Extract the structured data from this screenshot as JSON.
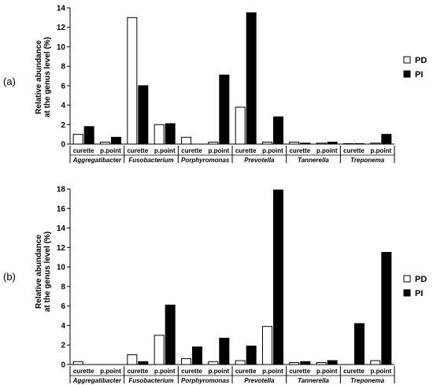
{
  "chart_data": [
    {
      "type": "bar",
      "panel_label": "(a)",
      "ylabel": "Relative abundance at the genus level (%)",
      "ylabel_lines": [
        "Relative abundance",
        "at the genus level (%)"
      ],
      "ylim": [
        0,
        14
      ],
      "yticks": [
        0,
        2,
        4,
        6,
        8,
        10,
        12,
        14
      ],
      "genera": [
        "Aggregatibacter",
        "Fusobacterium",
        "Porphyromonas",
        "Prevotella",
        "Tannerella",
        "Treponema"
      ],
      "categories": [
        "curette",
        "p.point",
        "curette",
        "p.point",
        "curette",
        "p.point",
        "curette",
        "p.point",
        "curette",
        "p.point",
        "curette",
        "p.point"
      ],
      "series": [
        {
          "name": "PD",
          "color": "#ffffff",
          "values": [
            1.0,
            0.2,
            13.0,
            2.0,
            0.7,
            0.2,
            3.8,
            0.2,
            0.2,
            0.1,
            0.05,
            0.1
          ]
        },
        {
          "name": "PI",
          "color": "#000000",
          "values": [
            1.8,
            0.7,
            6.0,
            2.1,
            0.0,
            7.1,
            13.5,
            2.8,
            0.1,
            0.2,
            0.05,
            1.0
          ]
        }
      ],
      "legend_position": "right",
      "grid": false
    },
    {
      "type": "bar",
      "panel_label": "(b)",
      "ylabel": "Relative abundance at the genus level (%)",
      "ylabel_lines": [
        "Relative abundance",
        "at the genus level (%)"
      ],
      "ylim": [
        0,
        18
      ],
      "yticks": [
        0,
        2,
        4,
        6,
        8,
        10,
        12,
        14,
        16,
        18
      ],
      "genera": [
        "Aggregatibacter",
        "Fusobacterium",
        "Porphyromonas",
        "Prevotella",
        "Tannerella",
        "Treponema"
      ],
      "categories": [
        "curette",
        "p.point",
        "curette",
        "p.point",
        "curette",
        "p.point",
        "curette",
        "p.point",
        "curette",
        "p.point",
        "curette",
        "p.point"
      ],
      "series": [
        {
          "name": "PD",
          "color": "#ffffff",
          "values": [
            0.3,
            0.0,
            1.0,
            3.0,
            0.6,
            0.3,
            0.4,
            3.9,
            0.2,
            0.2,
            0.0,
            0.4
          ]
        },
        {
          "name": "PI",
          "color": "#000000",
          "values": [
            0.0,
            0.0,
            0.3,
            6.1,
            1.8,
            2.7,
            1.9,
            17.9,
            0.3,
            0.4,
            4.2,
            11.5
          ]
        }
      ],
      "legend_position": "right",
      "grid": false
    }
  ]
}
